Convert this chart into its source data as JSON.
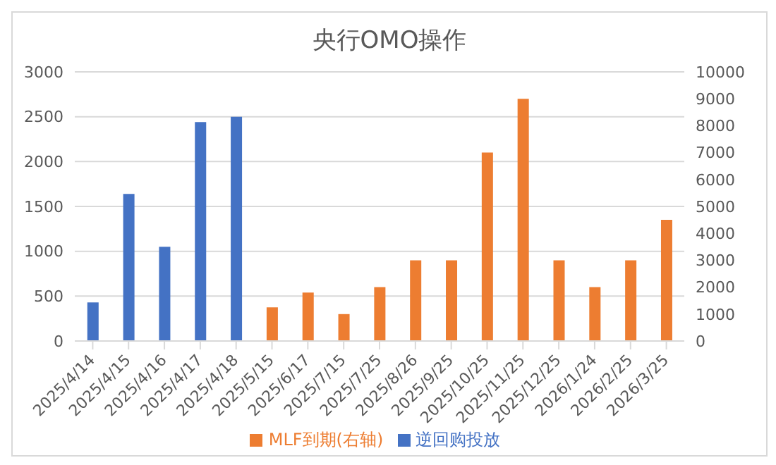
{
  "chart_data": {
    "type": "bar",
    "title": "央行OMO操作",
    "categories": [
      "2025/4/14",
      "2025/4/15",
      "2025/4/16",
      "2025/4/17",
      "2025/4/18",
      "2025/5/15",
      "2025/6/17",
      "2025/7/15",
      "2025/7/25",
      "2025/8/26",
      "2025/9/25",
      "2025/10/25",
      "2025/11/25",
      "2025/12/25",
      "2026/1/24",
      "2026/2/25",
      "2026/3/25"
    ],
    "series": [
      {
        "name": "逆回购投放",
        "color": "#4472c4",
        "values": [
          430,
          1640,
          1050,
          2440,
          2500,
          null,
          null,
          null,
          null,
          null,
          null,
          null,
          null,
          null,
          null,
          null,
          null
        ]
      },
      {
        "name": "MLF到期(右轴)",
        "color": "#ed7d31",
        "axis": "y2",
        "values": [
          null,
          null,
          null,
          null,
          null,
          1250,
          1800,
          1000,
          2000,
          3000,
          3000,
          7000,
          9000,
          3000,
          2000,
          3000,
          4500
        ]
      }
    ],
    "ylim": [
      0,
      3000
    ],
    "yticks": [
      0,
      500,
      1000,
      1500,
      2000,
      2500,
      3000
    ],
    "y2lim": [
      0,
      10000
    ],
    "y2ticks": [
      0,
      1000,
      2000,
      3000,
      4000,
      5000,
      6000,
      7000,
      8000,
      9000,
      10000
    ],
    "grid": "y",
    "legend": "bottom"
  }
}
